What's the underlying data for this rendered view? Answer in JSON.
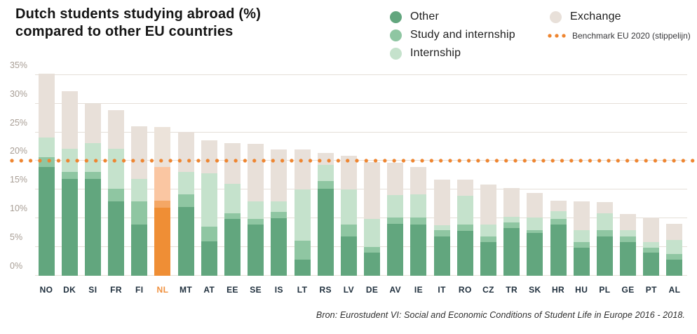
{
  "title": {
    "line1": "Dutch students studying abroad (%)",
    "line2": "compared to other EU countries"
  },
  "legend": {
    "items": [
      {
        "label": "Other",
        "color": "#62a67e"
      },
      {
        "label": "Study and internship",
        "color": "#8fc6a2"
      },
      {
        "label": "Internship",
        "color": "#c5e2cc"
      },
      {
        "label": "Exchange",
        "color": "#e8e0d9"
      }
    ],
    "benchmark_label": "Benchmark EU 2020 (stippelijn)"
  },
  "source": "Bron: Eurostudent VI: Social and Economic Conditions of Student Life in Europe 2016 - 2018.",
  "chart_data": {
    "type": "bar",
    "stacked": true,
    "grid": true,
    "legend_position": "top-right",
    "ylim": [
      0,
      35
    ],
    "yticks": [
      0,
      5,
      10,
      15,
      20,
      25,
      30,
      35
    ],
    "ytick_labels": [
      "0%",
      "5%",
      "10%",
      "15%",
      "20%",
      "25%",
      "30%",
      "35%"
    ],
    "categories": [
      "NO",
      "DK",
      "SI",
      "FR",
      "FI",
      "NL",
      "MT",
      "AT",
      "EE",
      "SE",
      "IS",
      "LT",
      "RS",
      "LV",
      "DE",
      "AV",
      "IE",
      "IT",
      "RO",
      "CZ",
      "TR",
      "SK",
      "HR",
      "HU",
      "PL",
      "GE",
      "PT",
      "AL"
    ],
    "highlight_category": "NL",
    "benchmark": {
      "value": 20,
      "color": "#ee8530",
      "label": "Benchmark EU 2020 (stippelijn)"
    },
    "series": [
      {
        "name": "Other",
        "color": "#62a67e",
        "highlight_color": "#ef8e35",
        "values": [
          18.9,
          16.9,
          16.9,
          12.9,
          8.9,
          11.9,
          12.0,
          6.0,
          9.9,
          8.9,
          10.0,
          2.8,
          15.2,
          6.9,
          4.0,
          9.0,
          8.9,
          6.9,
          7.8,
          5.9,
          8.3,
          7.4,
          8.9,
          4.9,
          6.9,
          5.9,
          4.0,
          2.8
        ]
      },
      {
        "name": "Study and internship",
        "color": "#8fc6a2",
        "highlight_color": "#f4a765",
        "values": [
          1.8,
          1.2,
          1.2,
          2.2,
          4.1,
          1.2,
          2.2,
          2.6,
          1.0,
          1.0,
          1.1,
          3.3,
          1.3,
          2.0,
          1.0,
          1.1,
          1.2,
          1.0,
          1.1,
          1.0,
          1.0,
          0.5,
          1.0,
          1.0,
          1.0,
          1.0,
          0.9,
          1.0
        ]
      },
      {
        "name": "Internship",
        "color": "#c5e2cc",
        "highlight_color": "#fac6a2",
        "values": [
          3.4,
          4.0,
          5.0,
          7.0,
          3.9,
          5.9,
          3.9,
          9.3,
          5.1,
          3.0,
          1.8,
          8.9,
          2.8,
          6.1,
          4.9,
          4.0,
          4.1,
          0.9,
          5.0,
          2.0,
          1.0,
          2.2,
          1.4,
          2.0,
          3.0,
          1.0,
          1.0,
          2.4
        ]
      },
      {
        "name": "Exchange",
        "color": "#e8e0d9",
        "highlight_color": "#ece3da",
        "values": [
          11.1,
          10.0,
          6.9,
          6.8,
          9.2,
          6.9,
          7.0,
          5.7,
          7.1,
          10.1,
          9.1,
          7.0,
          2.1,
          5.9,
          9.9,
          5.6,
          4.8,
          8.0,
          2.9,
          7.0,
          5.0,
          4.3,
          1.8,
          5.0,
          1.9,
          2.9,
          4.2,
          2.9
        ]
      }
    ]
  }
}
